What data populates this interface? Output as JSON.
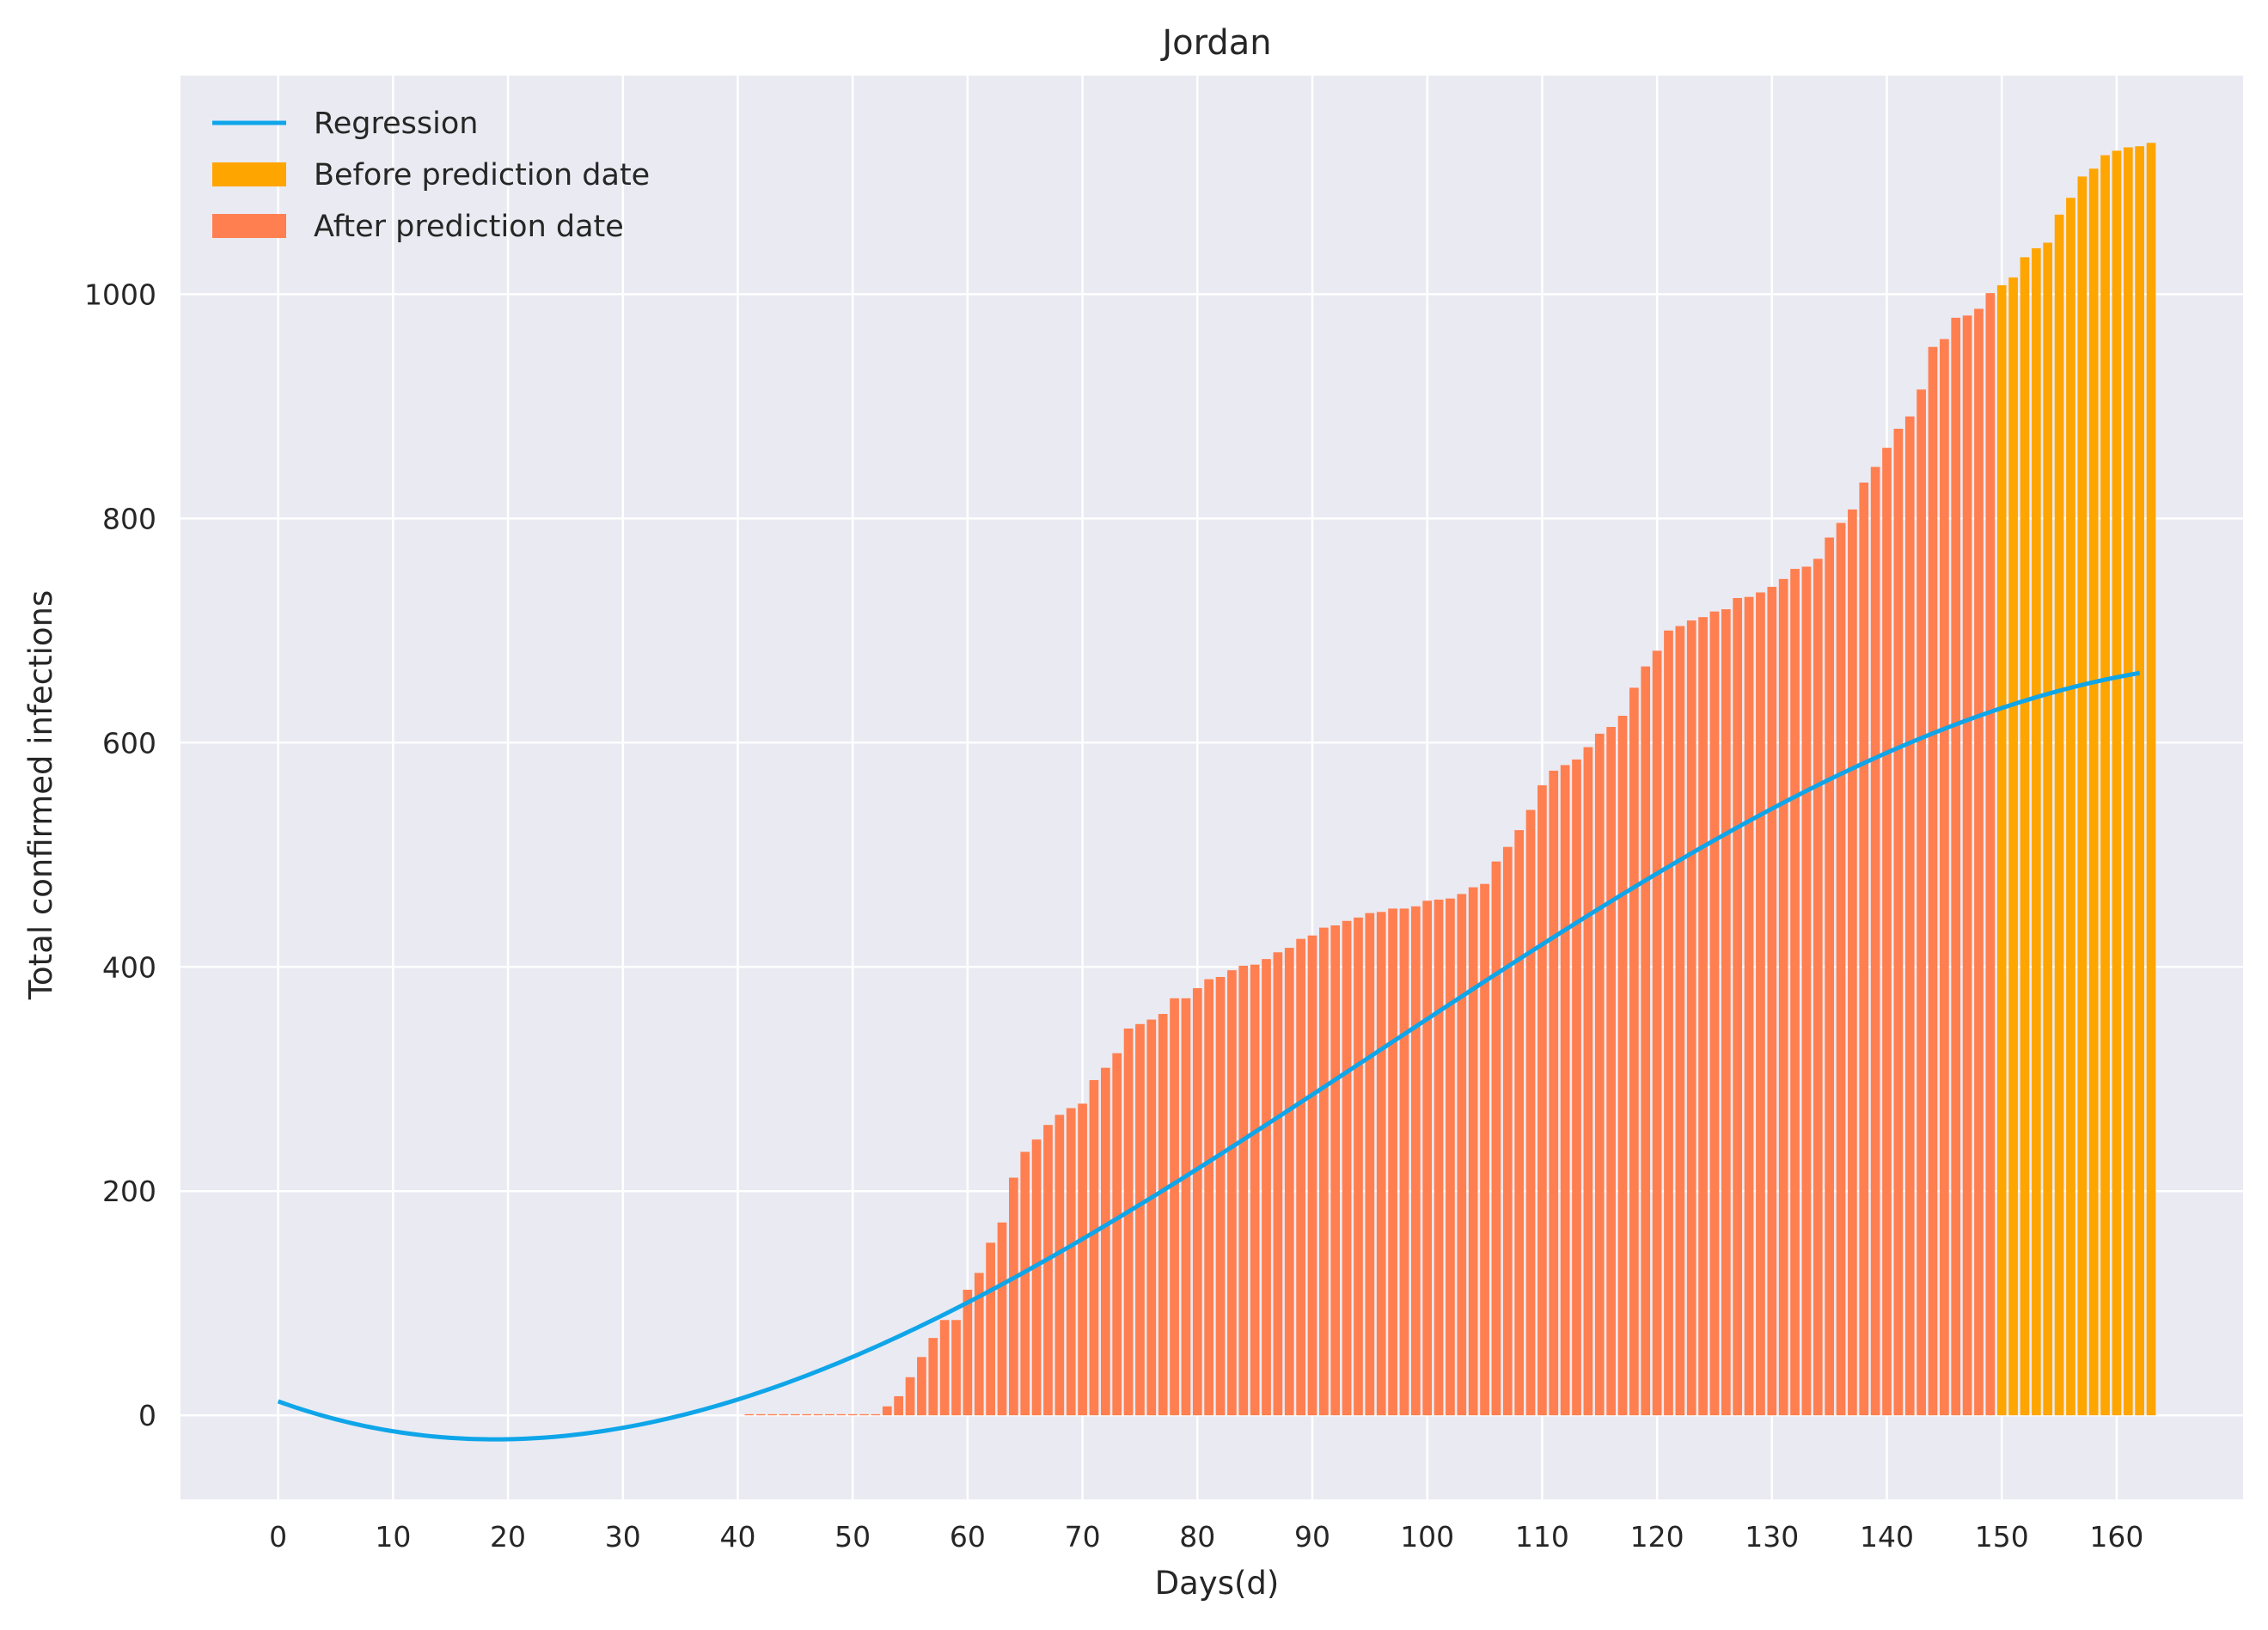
{
  "chart_data": {
    "type": "bar",
    "title": "Jordan",
    "xlabel": "Days(d)",
    "ylabel": "Total confirmed infections",
    "xlim": [
      -8.5,
      171
    ],
    "ylim": [
      -75,
      1195
    ],
    "x_ticks": [
      0,
      10,
      20,
      30,
      40,
      50,
      60,
      70,
      80,
      90,
      100,
      110,
      120,
      130,
      140,
      150,
      160
    ],
    "y_ticks": [
      0,
      200,
      400,
      600,
      800,
      1000
    ],
    "grid": true,
    "legend_position": "top-left",
    "prediction_start_day": 150,
    "colors": {
      "regression": "#0fa5e9",
      "before": "#ffa500",
      "after": "#ff7f50",
      "plot_bg": "#eaeaf2",
      "grid": "#ffffff"
    },
    "legend": [
      {
        "label": "Regression",
        "kind": "line",
        "color": "#0fa5e9"
      },
      {
        "label": "Before prediction date",
        "kind": "patch",
        "color": "#ffa500"
      },
      {
        "label": "After prediction date",
        "kind": "patch",
        "color": "#ff7f50"
      }
    ],
    "bars": {
      "start_day": 41,
      "values": [
        1,
        1,
        1,
        1,
        1,
        1,
        1,
        1,
        1,
        1,
        1,
        1,
        8,
        17,
        34,
        52,
        69,
        85,
        85,
        112,
        127,
        154,
        172,
        212,
        235,
        246,
        259,
        268,
        274,
        278,
        299,
        310,
        323,
        345,
        349,
        353,
        358,
        372,
        372,
        381,
        389,
        391,
        397,
        401,
        402,
        407,
        413,
        417,
        425,
        428,
        435,
        437,
        441,
        444,
        448,
        449,
        452,
        452,
        454,
        459,
        460,
        461,
        465,
        471,
        474,
        494,
        507,
        522,
        540,
        562,
        575,
        580,
        585,
        596,
        608,
        614,
        624,
        649,
        668,
        682,
        700,
        704,
        709,
        712,
        717,
        719,
        729,
        730,
        734,
        739,
        746,
        755,
        757,
        764,
        783,
        796,
        808,
        832,
        846,
        863,
        880,
        891,
        915,
        953,
        960,
        979,
        981,
        987,
        1001,
        1008,
        1015,
        1033,
        1041,
        1046,
        1071,
        1086,
        1105,
        1112,
        1124,
        1128,
        1131,
        1132,
        1135
      ]
    },
    "regression": {
      "x_range": [
        0,
        162
      ],
      "coefficients_cubic": [
        12.5,
        -3.73,
        0.1095,
        -0.000381
      ]
    }
  }
}
